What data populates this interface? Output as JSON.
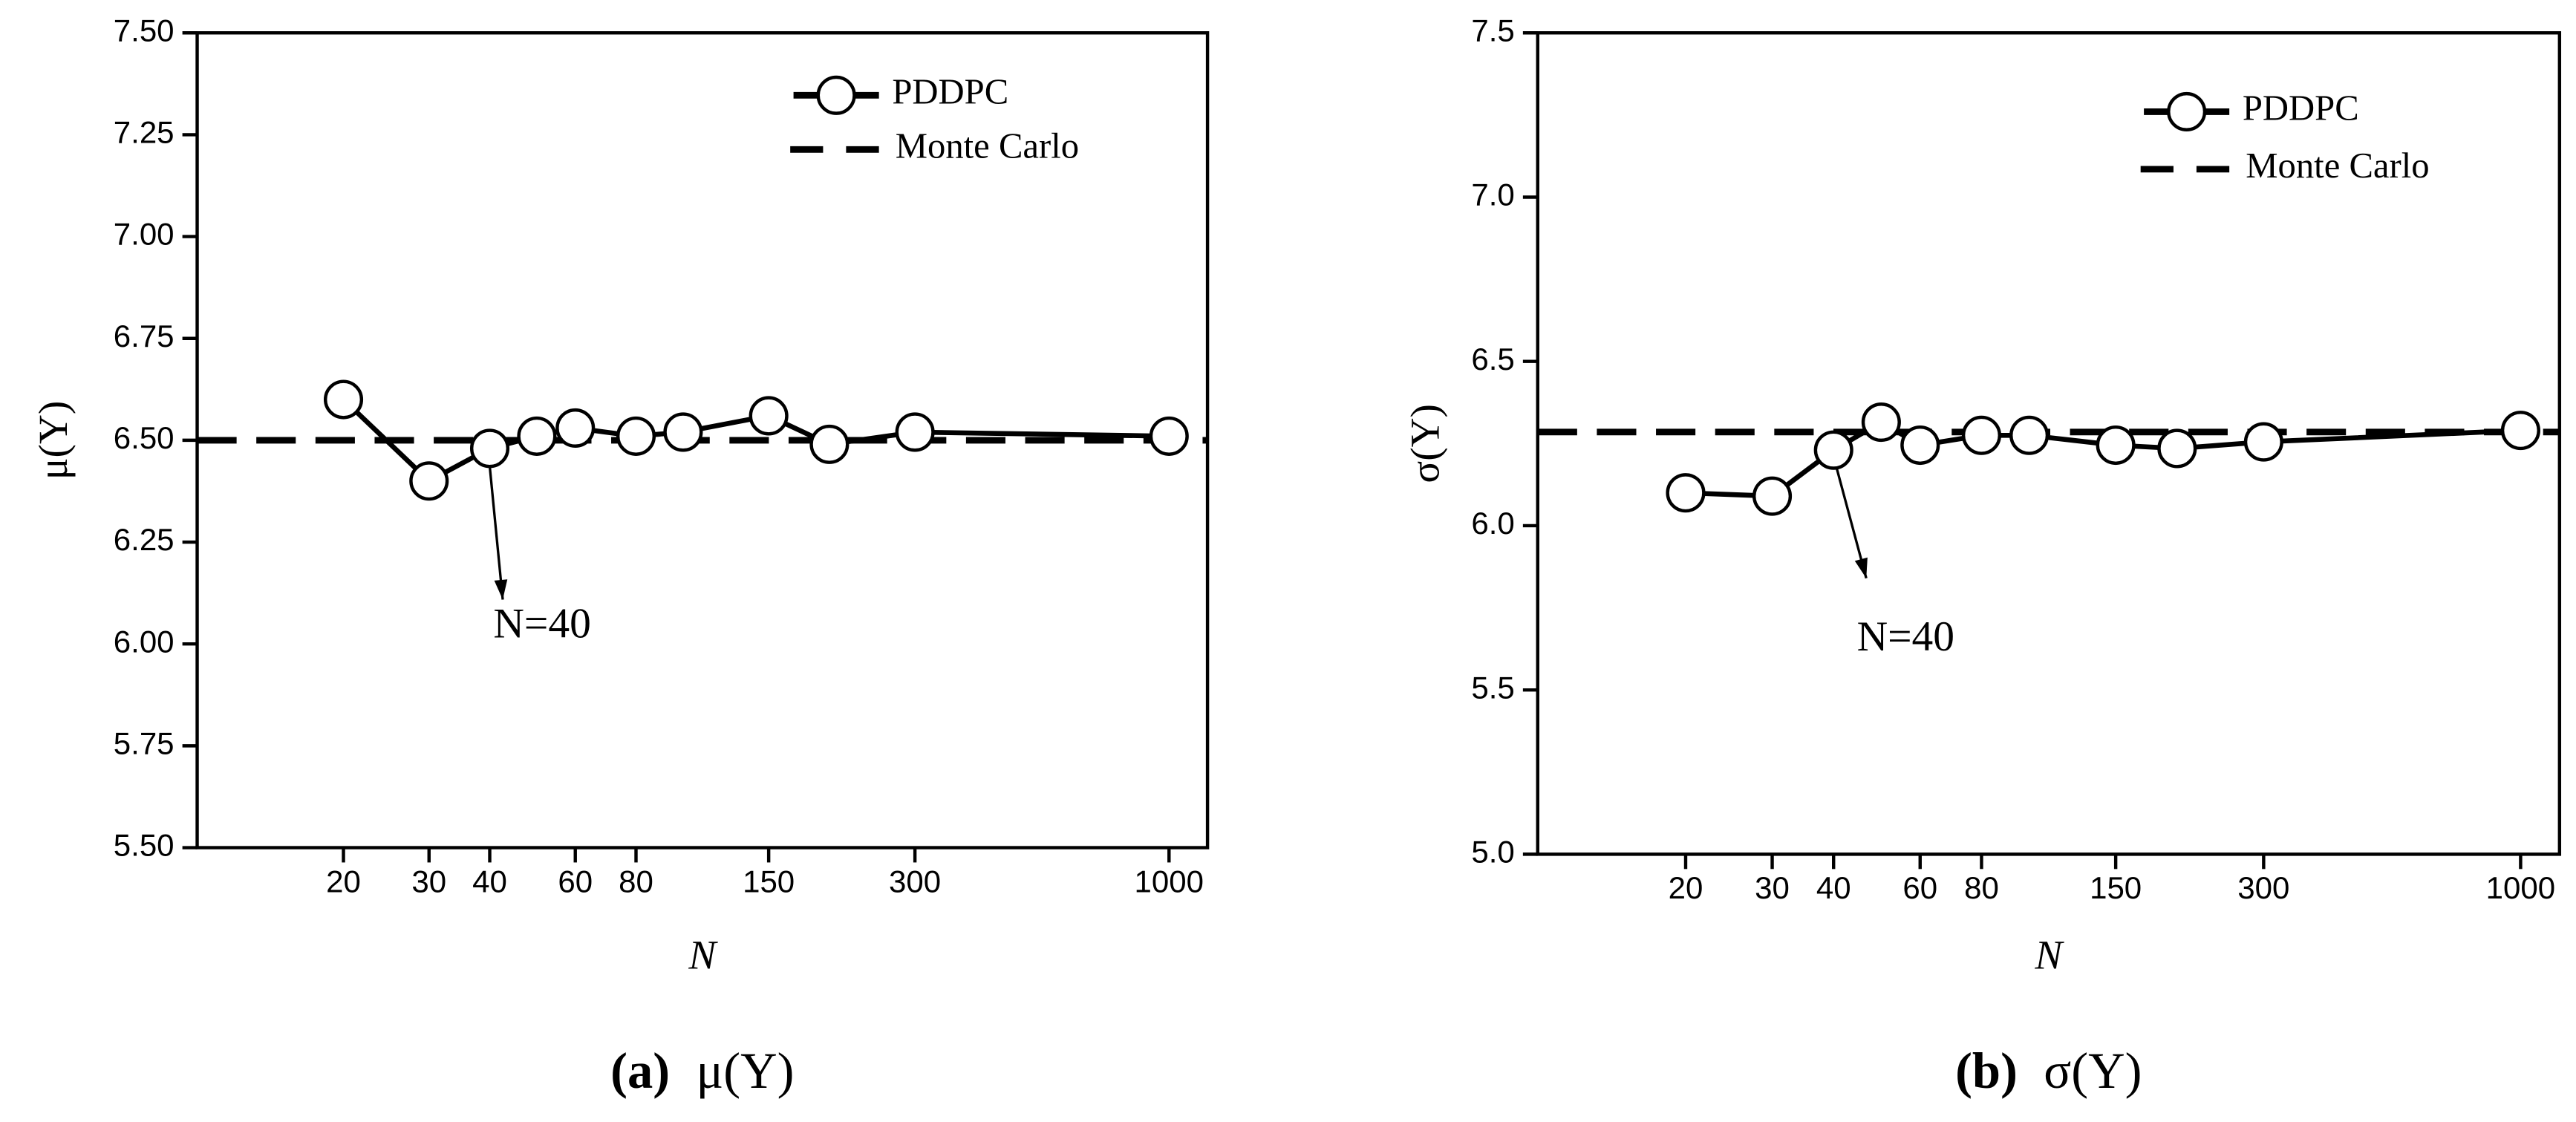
{
  "chart_data": [
    {
      "type": "line",
      "caption_label": "(a)",
      "caption": "μ(Y)",
      "y_label": "μ(Y)",
      "x_label": "N",
      "log_x": true,
      "xlim": [
        10,
        1200
      ],
      "xticks": [
        20,
        30,
        40,
        60,
        80,
        150,
        300,
        1000
      ],
      "ylim": [
        5.5,
        7.5
      ],
      "yticks": [
        {
          "value": 5.5,
          "label": "5.50"
        },
        5.75,
        {
          "value": 6,
          "label": "6.00"
        },
        6.25,
        {
          "value": 6.5,
          "label": "6.50"
        },
        6.75,
        {
          "value": 7,
          "label": "7.00"
        },
        7.25,
        {
          "value": 7.5,
          "label": "7.50"
        }
      ],
      "series": [
        {
          "name": "PDDPC",
          "color": "#000000",
          "x": [
            20,
            30,
            40,
            50,
            60,
            80,
            100,
            150,
            200,
            300,
            1000
          ],
          "values": [
            6.6,
            6.4,
            6.48,
            6.51,
            6.53,
            6.51,
            6.52,
            6.56,
            6.49,
            6.52,
            6.51
          ]
        }
      ],
      "reference_lines": [
        {
          "name": "Monte Carlo",
          "value": 6.5,
          "color": "#000000"
        }
      ],
      "annotation": "N=40"
    },
    {
      "type": "line",
      "caption_label": "(b)",
      "caption": "σ(Y)",
      "y_label": "σ(Y)",
      "x_label": "N",
      "log_x": true,
      "xlim": [
        10,
        1200
      ],
      "xticks": [
        20,
        30,
        40,
        60,
        80,
        150,
        300,
        1000
      ],
      "ylim": [
        5,
        7.5
      ],
      "yticks": [
        {
          "value": 5,
          "label": "5.0"
        },
        5.5,
        {
          "value": 6,
          "label": "6.0"
        },
        6.5,
        {
          "value": 7,
          "label": "7.0"
        },
        7.5
      ],
      "series": [
        {
          "name": "PDDPC",
          "color": "#000000",
          "x": [
            20,
            30,
            40,
            50,
            60,
            80,
            100,
            150,
            200,
            300,
            1000
          ],
          "values": [
            6.1,
            6.09,
            6.23,
            6.315,
            6.245,
            6.275,
            6.275,
            6.245,
            6.235,
            6.255,
            6.29
          ]
        }
      ],
      "reference_lines": [
        {
          "name": "Monte Carlo",
          "value": 6.285,
          "color": "#000000"
        }
      ],
      "annotation": "N=40"
    }
  ]
}
